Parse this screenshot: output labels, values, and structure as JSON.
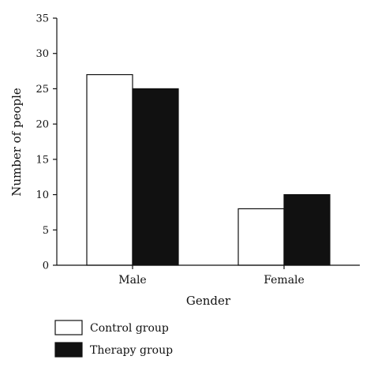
{
  "chart_data": {
    "type": "bar",
    "categories": [
      "Male",
      "Female"
    ],
    "series": [
      {
        "name": "Control group",
        "values": [
          27,
          8
        ],
        "color": "#ffffff"
      },
      {
        "name": "Therapy group",
        "values": [
          25,
          10
        ],
        "color": "#111111"
      }
    ],
    "xlabel": "Gender",
    "ylabel": "Number of people",
    "ylim": [
      0,
      35
    ],
    "yticks": [
      0,
      5,
      10,
      15,
      20,
      25,
      30,
      35
    ],
    "grid": false,
    "legend_position": "bottom-left"
  }
}
